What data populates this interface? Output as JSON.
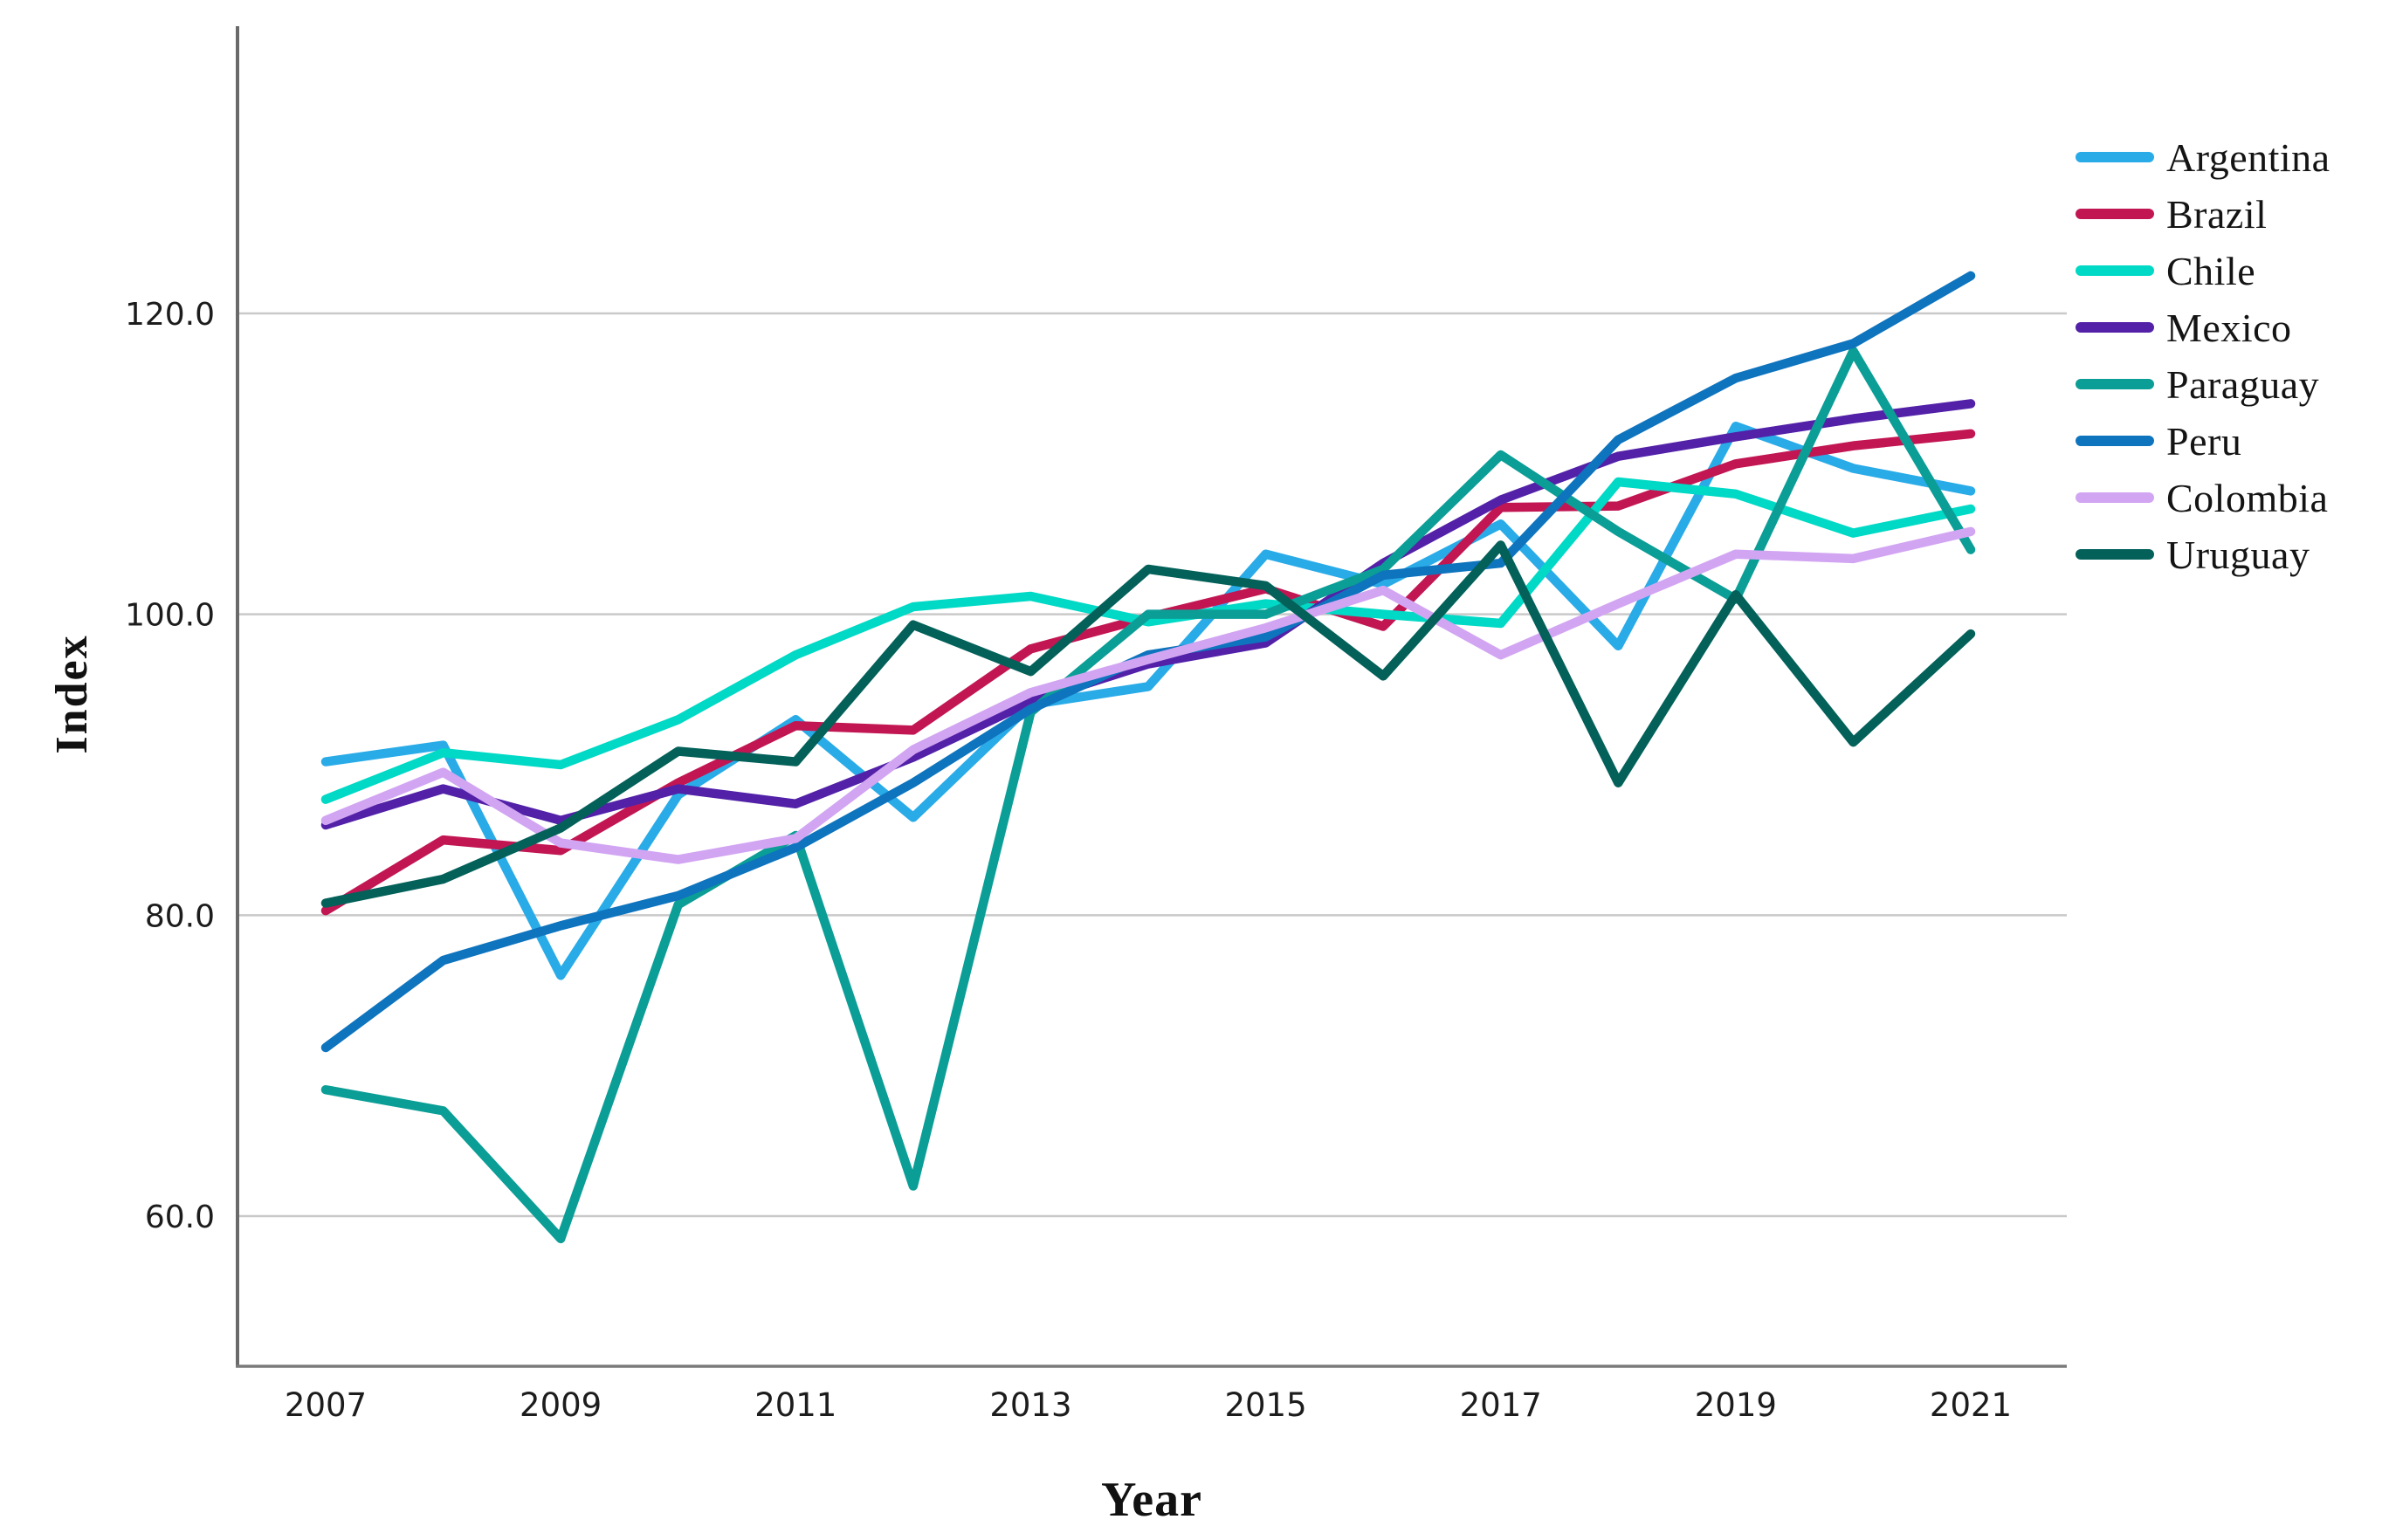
{
  "chart_data": {
    "type": "line",
    "title": "",
    "xlabel": "Year",
    "ylabel": "Index",
    "x": [
      2007,
      2008,
      2009,
      2010,
      2011,
      2012,
      2013,
      2014,
      2015,
      2016,
      2017,
      2018,
      2019,
      2020,
      2021
    ],
    "x_tick_labels": [
      "2007",
      "2009",
      "2011",
      "2013",
      "2015",
      "2017",
      "2019",
      "2021"
    ],
    "x_tick_years": [
      2007,
      2009,
      2011,
      2013,
      2015,
      2017,
      2019,
      2021
    ],
    "y_ticks": [
      {
        "label": "120.0",
        "value": 120
      },
      {
        "label": "100.0",
        "value": 100
      },
      {
        "label": "80.0",
        "value": 80
      },
      {
        "label": "60.0",
        "value": 60
      }
    ],
    "ylim": [
      50,
      139
    ],
    "grid": "horizontal-only",
    "legend_position": "right",
    "series": [
      {
        "name": "Argentina",
        "color": "#29ABE8",
        "values": [
          90.2,
          91.3,
          76.0,
          88.0,
          93.0,
          86.5,
          94.0,
          95.2,
          104.0,
          102.0,
          106.0,
          97.9,
          112.5,
          109.7,
          108.2
        ]
      },
      {
        "name": "Brazil",
        "color": "#C21653",
        "values": [
          80.3,
          85.0,
          84.3,
          88.8,
          92.6,
          92.3,
          97.7,
          99.8,
          101.7,
          99.2,
          107.1,
          107.2,
          110.0,
          111.2,
          112.0
        ]
      },
      {
        "name": "Chile",
        "color": "#00D9C5",
        "values": [
          87.7,
          90.8,
          90.0,
          93.0,
          97.3,
          100.5,
          101.2,
          99.5,
          100.7,
          100.0,
          99.4,
          108.8,
          108.0,
          105.4,
          107.0
        ]
      },
      {
        "name": "Mexico",
        "color": "#5221A8",
        "values": [
          86.0,
          88.4,
          86.3,
          88.4,
          87.4,
          90.5,
          94.2,
          96.7,
          98.1,
          103.4,
          107.6,
          110.5,
          111.8,
          113.0,
          114.0
        ]
      },
      {
        "name": "Paraguay",
        "color": "#0B9E96",
        "values": [
          68.4,
          67.0,
          58.5,
          80.7,
          85.3,
          62.0,
          93.5,
          100.0,
          100.0,
          103.0,
          110.6,
          105.5,
          101.0,
          117.5,
          104.3
        ]
      },
      {
        "name": "Peru",
        "color": "#0E74BE",
        "values": [
          71.2,
          77.0,
          79.3,
          81.3,
          84.5,
          88.8,
          93.7,
          97.3,
          98.5,
          102.6,
          103.4,
          111.6,
          115.7,
          118.0,
          122.5
        ]
      },
      {
        "name": "Colombia",
        "color": "#D2A5F3",
        "values": [
          86.3,
          89.5,
          84.8,
          83.7,
          85.1,
          91.0,
          94.8,
          97.0,
          99.1,
          101.6,
          97.3,
          100.7,
          104.0,
          103.7,
          105.5
        ]
      },
      {
        "name": "Uruguay",
        "color": "#03615A",
        "values": [
          80.8,
          82.4,
          85.8,
          90.9,
          90.2,
          99.3,
          96.2,
          103.0,
          101.9,
          95.9,
          104.6,
          88.8,
          101.3,
          91.5,
          98.7
        ]
      }
    ]
  }
}
